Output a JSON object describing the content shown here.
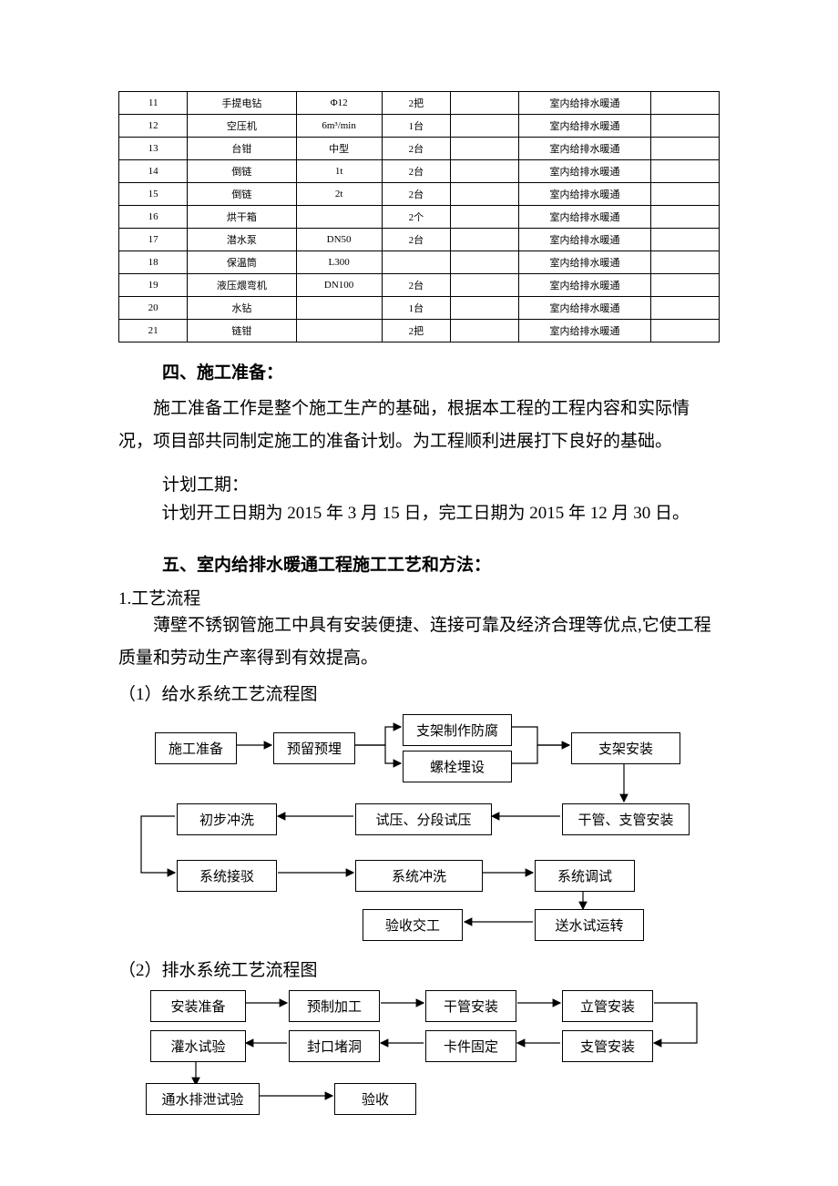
{
  "table": {
    "rows": [
      {
        "n": "11",
        "name": "手提电钻",
        "spec": "Φ12",
        "qty": "2把",
        "note": "",
        "use": "室内给排水暖通",
        "b": ""
      },
      {
        "n": "12",
        "name": "空压机",
        "spec": "6m³/min",
        "qty": "1台",
        "note": "",
        "use": "室内给排水暖通",
        "b": ""
      },
      {
        "n": "13",
        "name": "台钳",
        "spec": "中型",
        "qty": "2台",
        "note": "",
        "use": "室内给排水暖通",
        "b": ""
      },
      {
        "n": "14",
        "name": "倒链",
        "spec": "1t",
        "qty": "2台",
        "note": "",
        "use": "室内给排水暖通",
        "b": ""
      },
      {
        "n": "15",
        "name": "倒链",
        "spec": "2t",
        "qty": "2台",
        "note": "",
        "use": "室内给排水暖通",
        "b": ""
      },
      {
        "n": "16",
        "name": "烘干箱",
        "spec": "",
        "qty": "2个",
        "note": "",
        "use": "室内给排水暖通",
        "b": ""
      },
      {
        "n": "17",
        "name": "潜水泵",
        "spec": "DN50",
        "qty": "2台",
        "note": "",
        "use": "室内给排水暖通",
        "b": ""
      },
      {
        "n": "18",
        "name": "保温筒",
        "spec": "L300",
        "qty": "",
        "note": "",
        "use": "室内给排水暖通",
        "b": ""
      },
      {
        "n": "19",
        "name": "液压煨弯机",
        "spec": "DN100",
        "qty": "2台",
        "note": "",
        "use": "室内给排水暖通",
        "b": ""
      },
      {
        "n": "20",
        "name": "水钻",
        "spec": "",
        "qty": "1台",
        "note": "",
        "use": "室内给排水暖通",
        "b": ""
      },
      {
        "n": "21",
        "name": "链钳",
        "spec": "",
        "qty": "2把",
        "note": "",
        "use": "室内给排水暖通",
        "b": ""
      }
    ]
  },
  "h4": "四、施工准备：",
  "p4": "施工准备工作是整个施工生产的基础，根据本工程的工程内容和实际情况，项目部共同制定施工的准备计划。为工程顺利进展打下良好的基础。",
  "plan_label": "计划工期：",
  "plan_text": "计划开工日期为 2015 年 3 月  15 日，完工日期为 2015 年 12 月 30 日。",
  "h5": "五、室内给排水暖通工程施工工艺和方法：",
  "s5_1": "1.工艺流程",
  "p5_1": "薄壁不锈钢管施工中具有安装便捷、连接可靠及经济合理等优点,它使工程质量和劳动生产率得到有效提高。",
  "flow1_title": "（1）给水系统工艺流程图",
  "flow2_title": "（2）排水系统工艺流程图",
  "flow1": {
    "b1": "施工准备",
    "b2": "预留预埋",
    "b3a": "支架制作防腐",
    "b3b": "螺栓埋设",
    "b4": "支架安装",
    "b5": "干管、支管安装",
    "b6": "试压、分段试压",
    "b7": "初步冲洗",
    "b8": "系统接驳",
    "b9": "系统冲洗",
    "b10": "系统调试",
    "b11": "送水试运转",
    "b12": "验收交工"
  },
  "flow2": {
    "b1": "安装准备",
    "b2": "预制加工",
    "b3": "干管安装",
    "b4": "立管安装",
    "b5": "支管安装",
    "b6": "卡件固定",
    "b7": "封口堵洞",
    "b8": "灌水试验",
    "b9": "通水排泄试验",
    "b10": "验收"
  }
}
